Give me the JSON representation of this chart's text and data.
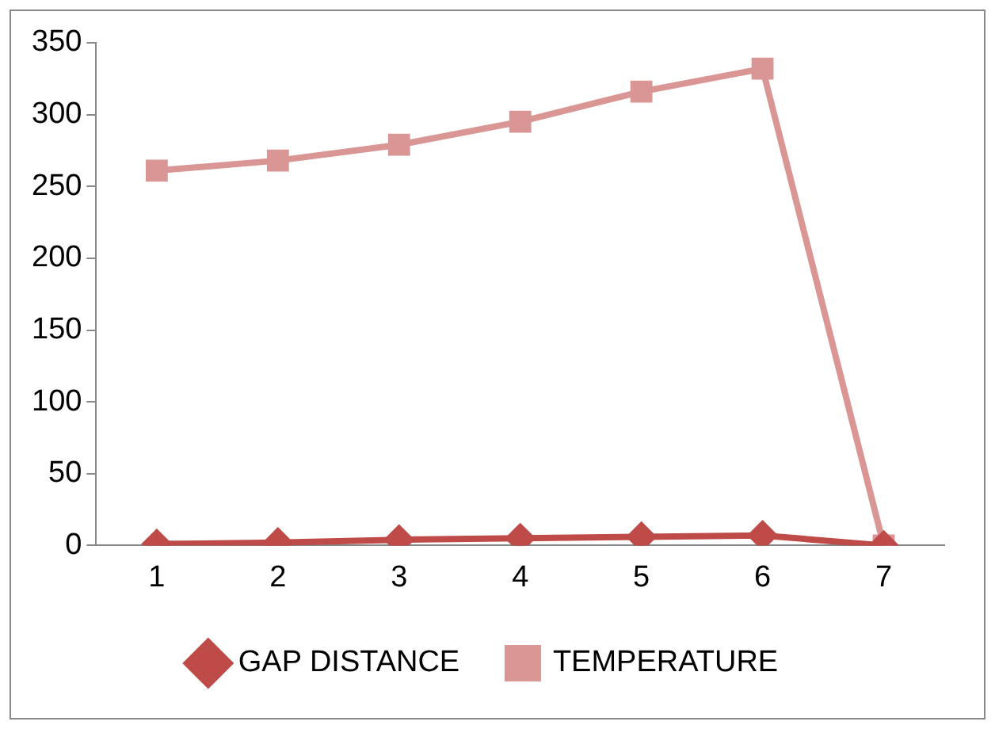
{
  "chart_data": {
    "type": "line",
    "categories": [
      "1",
      "2",
      "3",
      "4",
      "5",
      "6",
      "7"
    ],
    "series": [
      {
        "name": "GAP DISTANCE",
        "color": "#be4b48",
        "marker": "diamond",
        "values": [
          1,
          2,
          4,
          5,
          6,
          7,
          0
        ]
      },
      {
        "name": "TEMPERATURE",
        "color": "#d99694",
        "marker": "square",
        "values": [
          261,
          268,
          279,
          295,
          316,
          332,
          0
        ]
      }
    ],
    "ylim": [
      0,
      350
    ],
    "yticks": [
      0,
      50,
      100,
      150,
      200,
      250,
      300,
      350
    ],
    "grid": false,
    "legend": "bottom",
    "line_style": "solid"
  }
}
